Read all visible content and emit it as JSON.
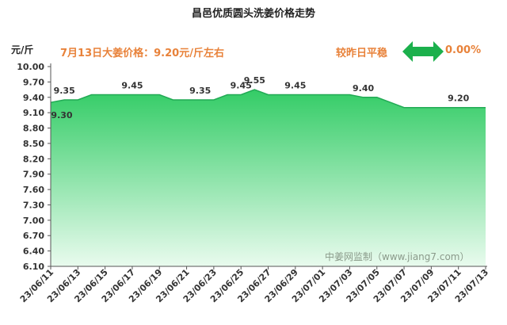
{
  "header": {
    "title": "昌邑优质圆头洗姜价格走势",
    "unit": "元/斤",
    "price_note": "7月13日大姜价格：9.20元/斤左右",
    "compare_label": "较昨日平稳",
    "compare_value": "0.00%"
  },
  "watermark": "中姜网监制（www.jiang7.com）",
  "colors": {
    "fill_top": "#33cc66",
    "fill_bottom": "#e9fbee",
    "line": "#22aa55",
    "arrow": "#1bb04c",
    "accent_text": "#e8823a"
  },
  "chart_data": {
    "type": "area",
    "title": "昌邑优质圆头洗姜价格走势",
    "ylabel": "元/斤",
    "xlabel": "",
    "ylim": [
      6.1,
      10.0
    ],
    "y_ticks": [
      "6.10",
      "6.40",
      "6.70",
      "7.00",
      "7.30",
      "7.60",
      "7.90",
      "8.20",
      "8.50",
      "8.80",
      "9.10",
      "9.40",
      "9.70",
      "10.00"
    ],
    "x_tick_labels": [
      "23/06/11",
      "23/06/13",
      "23/06/15",
      "23/06/17",
      "23/06/19",
      "23/06/21",
      "23/06/23",
      "23/06/25",
      "23/06/27",
      "23/06/29",
      "23/07/01",
      "23/07/03",
      "23/07/05",
      "23/07/07",
      "23/07/09",
      "23/07/11",
      "23/07/13"
    ],
    "series": [
      {
        "dates": [
          "23/06/11",
          "23/06/12",
          "23/06/13",
          "23/06/14",
          "23/06/15",
          "23/06/16",
          "23/06/17",
          "23/06/18",
          "23/06/19",
          "23/06/20",
          "23/06/21",
          "23/06/22",
          "23/06/23",
          "23/06/24",
          "23/06/25",
          "23/06/26",
          "23/06/27",
          "23/06/28",
          "23/06/29",
          "23/06/30",
          "23/07/01",
          "23/07/02",
          "23/07/03",
          "23/07/04",
          "23/07/05",
          "23/07/06",
          "23/07/07",
          "23/07/08",
          "23/07/09",
          "23/07/10",
          "23/07/11",
          "23/07/12",
          "23/07/13"
        ],
        "values": [
          9.3,
          9.35,
          9.35,
          9.45,
          9.45,
          9.45,
          9.45,
          9.45,
          9.45,
          9.35,
          9.35,
          9.35,
          9.35,
          9.45,
          9.45,
          9.55,
          9.45,
          9.45,
          9.45,
          9.45,
          9.45,
          9.45,
          9.45,
          9.4,
          9.4,
          9.3,
          9.2,
          9.2,
          9.2,
          9.2,
          9.2,
          9.2,
          9.2
        ]
      }
    ],
    "data_labels": [
      {
        "date": "23/06/11",
        "text": "9.30"
      },
      {
        "date": "23/06/12",
        "text": "9.35"
      },
      {
        "date": "23/06/17",
        "text": "9.45"
      },
      {
        "date": "23/06/22",
        "text": "9.35"
      },
      {
        "date": "23/06/25",
        "text": "9.45"
      },
      {
        "date": "23/06/26",
        "text": "9.55"
      },
      {
        "date": "23/06/29",
        "text": "9.45"
      },
      {
        "date": "23/07/04",
        "text": "9.40"
      },
      {
        "date": "23/07/11",
        "text": "9.20"
      }
    ],
    "grid": false,
    "legend": "none"
  }
}
